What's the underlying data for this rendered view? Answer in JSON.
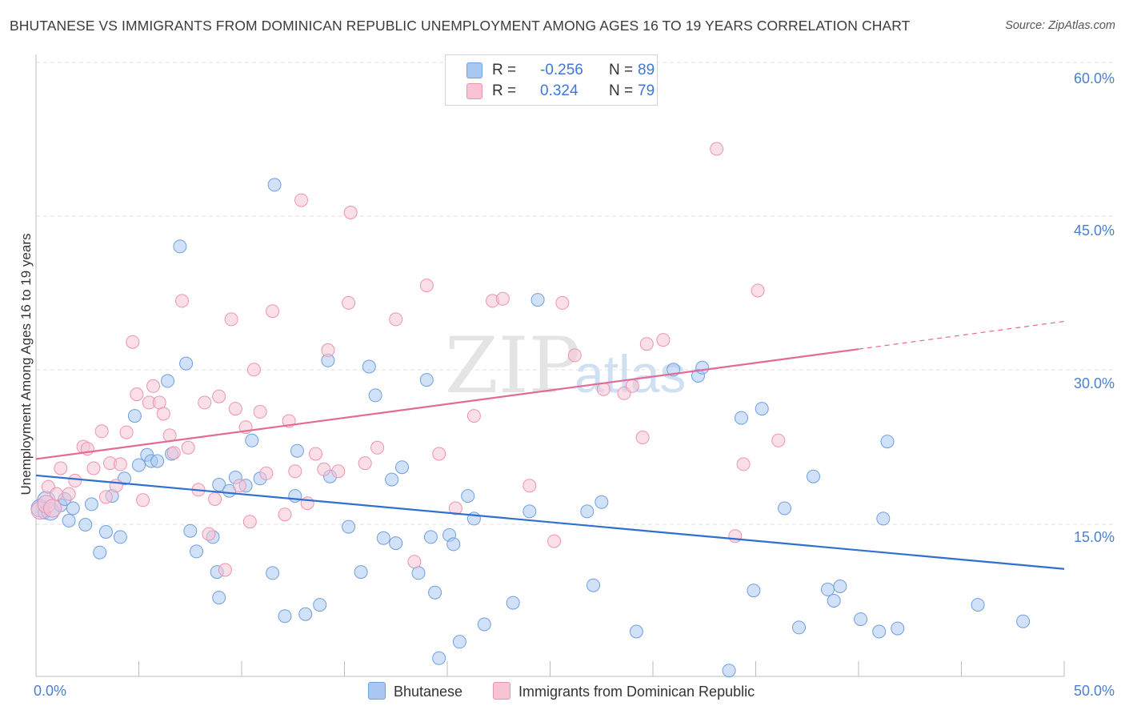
{
  "title": "BHUTANESE VS IMMIGRANTS FROM DOMINICAN REPUBLIC UNEMPLOYMENT AMONG AGES 16 TO 19 YEARS CORRELATION CHART",
  "source": "Source: ZipAtlas.com",
  "watermark": {
    "zip": "ZIP",
    "atlas": "atlas"
  },
  "legend": {
    "rows": [
      {
        "r_label": "R =",
        "r_value": "-0.256",
        "n_label": "N =",
        "n_value": "89",
        "color": "#aac8f2",
        "border": "#6f9fe0"
      },
      {
        "r_label": "R =",
        "r_value": "0.324",
        "n_label": "N =",
        "n_value": "79",
        "color": "#f8c4d4",
        "border": "#ec93b1"
      }
    ]
  },
  "bottom_legend": {
    "series_a": "Bhutanese",
    "series_b": "Immigrants from Dominican Republic"
  },
  "chart_data": {
    "type": "scatter",
    "title": "BHUTANESE VS IMMIGRANTS FROM DOMINICAN REPUBLIC UNEMPLOYMENT AMONG AGES 16 TO 19 YEARS CORRELATION CHART",
    "xlabel": "",
    "ylabel": "Unemployment Among Ages 16 to 19 years",
    "xlim": [
      0,
      50
    ],
    "ylim": [
      0,
      60
    ],
    "x_tick_labels": [
      "0.0%",
      "50.0%"
    ],
    "y_ticks": [
      15,
      30,
      45,
      60
    ],
    "y_tick_labels": [
      "15.0%",
      "30.0%",
      "45.0%",
      "60.0%"
    ],
    "grid": "horizontal dashed",
    "legend_position": "top-center",
    "series": [
      {
        "name": "Bhutanese",
        "color": "#aac8f2",
        "stroke": "#6f9fe0",
        "trend_color": "#2f6fd0",
        "trend": {
          "x0": 0,
          "y0": 19.8,
          "x1": 50,
          "y1": 10.7
        },
        "points": [
          [
            0.2,
            16.6
          ],
          [
            0.4,
            16.2
          ],
          [
            0.5,
            17.4
          ],
          [
            0.7,
            16.3
          ],
          [
            1.2,
            16.9
          ],
          [
            1.4,
            17.5
          ],
          [
            1.6,
            15.4
          ],
          [
            1.8,
            16.6
          ],
          [
            2.4,
            15.0
          ],
          [
            2.7,
            17.0
          ],
          [
            3.1,
            12.3
          ],
          [
            3.4,
            14.3
          ],
          [
            3.7,
            17.8
          ],
          [
            4.1,
            13.8
          ],
          [
            4.3,
            19.5
          ],
          [
            4.8,
            25.6
          ],
          [
            5.0,
            20.8
          ],
          [
            5.4,
            21.8
          ],
          [
            5.6,
            21.2
          ],
          [
            5.9,
            21.2
          ],
          [
            6.4,
            29.0
          ],
          [
            6.6,
            21.9
          ],
          [
            7.0,
            42.1
          ],
          [
            7.3,
            30.7
          ],
          [
            7.5,
            14.4
          ],
          [
            7.8,
            12.4
          ],
          [
            8.6,
            13.8
          ],
          [
            8.8,
            10.4
          ],
          [
            8.9,
            18.9
          ],
          [
            8.9,
            7.9
          ],
          [
            9.4,
            18.3
          ],
          [
            9.7,
            19.6
          ],
          [
            10.2,
            18.8
          ],
          [
            10.5,
            23.2
          ],
          [
            10.9,
            19.5
          ],
          [
            11.5,
            10.3
          ],
          [
            11.6,
            48.1
          ],
          [
            12.1,
            6.1
          ],
          [
            12.6,
            17.8
          ],
          [
            12.7,
            22.2
          ],
          [
            13.1,
            6.3
          ],
          [
            13.8,
            7.2
          ],
          [
            14.2,
            31.0
          ],
          [
            14.3,
            19.7
          ],
          [
            15.2,
            14.8
          ],
          [
            15.8,
            10.4
          ],
          [
            16.2,
            30.4
          ],
          [
            16.5,
            27.6
          ],
          [
            16.9,
            13.7
          ],
          [
            17.3,
            19.4
          ],
          [
            17.5,
            13.2
          ],
          [
            17.8,
            20.6
          ],
          [
            18.6,
            10.3
          ],
          [
            19.0,
            29.1
          ],
          [
            19.2,
            13.8
          ],
          [
            19.4,
            8.4
          ],
          [
            19.6,
            2.0
          ],
          [
            20.1,
            14.0
          ],
          [
            20.3,
            13.1
          ],
          [
            20.6,
            3.6
          ],
          [
            21.0,
            17.8
          ],
          [
            21.3,
            15.6
          ],
          [
            21.8,
            5.3
          ],
          [
            23.2,
            7.4
          ],
          [
            24.0,
            16.3
          ],
          [
            24.4,
            36.9
          ],
          [
            26.8,
            16.3
          ],
          [
            27.1,
            9.1
          ],
          [
            27.5,
            17.2
          ],
          [
            29.2,
            4.6
          ],
          [
            31.0,
            30.1
          ],
          [
            32.2,
            29.5
          ],
          [
            32.4,
            30.3
          ],
          [
            33.7,
            0.8
          ],
          [
            34.3,
            25.4
          ],
          [
            34.9,
            8.6
          ],
          [
            35.3,
            26.3
          ],
          [
            36.4,
            16.6
          ],
          [
            37.1,
            5.0
          ],
          [
            37.8,
            19.7
          ],
          [
            38.5,
            8.7
          ],
          [
            38.8,
            7.6
          ],
          [
            39.1,
            9.0
          ],
          [
            40.1,
            5.8
          ],
          [
            41.0,
            4.6
          ],
          [
            41.2,
            15.6
          ],
          [
            41.4,
            23.1
          ],
          [
            41.9,
            4.9
          ],
          [
            45.8,
            7.2
          ],
          [
            48.0,
            5.6
          ]
        ]
      },
      {
        "name": "Immigrants from Dominican Republic",
        "color": "#f8c4d4",
        "stroke": "#ec93b1",
        "trend_color": "#e36a96",
        "trend": {
          "x0": 0,
          "y0": 21.4,
          "x1": 40,
          "y1": 32.1
        },
        "trend_extension": {
          "x1": 50,
          "y1": 34.8
        },
        "points": [
          [
            0.2,
            16.4
          ],
          [
            0.6,
            18.7
          ],
          [
            1.0,
            18.0
          ],
          [
            1.2,
            20.5
          ],
          [
            1.6,
            18.0
          ],
          [
            1.9,
            19.3
          ],
          [
            2.3,
            22.6
          ],
          [
            2.5,
            22.4
          ],
          [
            2.8,
            20.5
          ],
          [
            3.2,
            24.1
          ],
          [
            3.4,
            17.7
          ],
          [
            3.6,
            21.0
          ],
          [
            3.9,
            18.8
          ],
          [
            4.1,
            20.9
          ],
          [
            4.4,
            24.0
          ],
          [
            4.7,
            32.8
          ],
          [
            4.9,
            27.7
          ],
          [
            5.2,
            17.4
          ],
          [
            5.5,
            26.9
          ],
          [
            5.7,
            28.5
          ],
          [
            6.0,
            26.9
          ],
          [
            6.2,
            25.8
          ],
          [
            6.5,
            23.7
          ],
          [
            6.7,
            22.0
          ],
          [
            7.1,
            36.8
          ],
          [
            7.4,
            22.5
          ],
          [
            7.9,
            18.4
          ],
          [
            8.2,
            26.9
          ],
          [
            8.4,
            14.1
          ],
          [
            8.7,
            17.5
          ],
          [
            8.9,
            27.5
          ],
          [
            9.2,
            10.6
          ],
          [
            9.5,
            35.0
          ],
          [
            9.7,
            26.3
          ],
          [
            9.9,
            18.8
          ],
          [
            10.2,
            24.5
          ],
          [
            10.4,
            15.3
          ],
          [
            10.6,
            30.1
          ],
          [
            10.9,
            26.0
          ],
          [
            11.2,
            20.0
          ],
          [
            11.5,
            35.8
          ],
          [
            12.1,
            16.0
          ],
          [
            12.3,
            25.1
          ],
          [
            12.6,
            20.2
          ],
          [
            12.9,
            46.6
          ],
          [
            13.2,
            17.1
          ],
          [
            13.6,
            21.9
          ],
          [
            14.0,
            20.4
          ],
          [
            14.2,
            32.0
          ],
          [
            14.7,
            20.2
          ],
          [
            15.2,
            36.6
          ],
          [
            15.3,
            45.4
          ],
          [
            16.0,
            21.0
          ],
          [
            16.6,
            22.5
          ],
          [
            17.5,
            35.0
          ],
          [
            18.4,
            11.4
          ],
          [
            19.0,
            38.3
          ],
          [
            19.6,
            21.9
          ],
          [
            20.4,
            16.6
          ],
          [
            21.3,
            25.6
          ],
          [
            22.2,
            36.8
          ],
          [
            22.7,
            37.0
          ],
          [
            24.0,
            18.8
          ],
          [
            25.2,
            13.4
          ],
          [
            25.6,
            36.6
          ],
          [
            26.2,
            31.5
          ],
          [
            27.6,
            28.2
          ],
          [
            28.6,
            27.8
          ],
          [
            29.0,
            28.5
          ],
          [
            29.5,
            23.5
          ],
          [
            29.7,
            32.6
          ],
          [
            30.5,
            33.0
          ],
          [
            33.1,
            51.6
          ],
          [
            34.0,
            13.9
          ],
          [
            34.4,
            20.9
          ],
          [
            35.1,
            37.8
          ],
          [
            36.1,
            23.2
          ],
          [
            0.5,
            17.0
          ],
          [
            0.8,
            16.6
          ]
        ]
      }
    ]
  }
}
